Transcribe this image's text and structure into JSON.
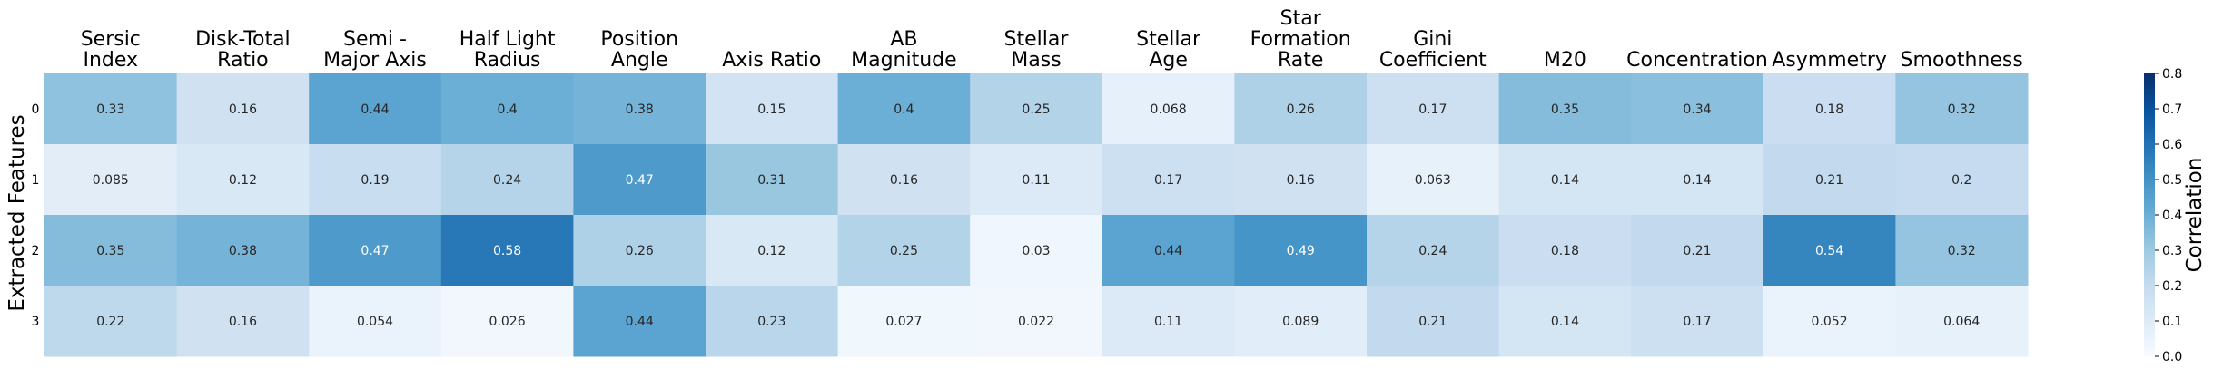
{
  "chart_data": {
    "type": "heatmap",
    "title": "",
    "xlabel": "",
    "ylabel": "Extracted Features",
    "colorbar_label": "Correlation",
    "colorbar_range": [
      0.0,
      0.8
    ],
    "colorbar_ticks": [
      "0.0",
      "0.1",
      "0.2",
      "0.3",
      "0.4",
      "0.5",
      "0.6",
      "0.7",
      "0.8"
    ],
    "columns": [
      [
        "Sersic",
        "Index"
      ],
      [
        "Disk-Total",
        "Ratio"
      ],
      [
        "Semi -",
        "Major Axis"
      ],
      [
        "Half Light",
        "Radius"
      ],
      [
        "Position",
        "Angle"
      ],
      [
        "Axis Ratio"
      ],
      [
        "AB",
        "Magnitude"
      ],
      [
        "Stellar",
        "Mass"
      ],
      [
        "Stellar",
        "Age"
      ],
      [
        "Star",
        "Formation",
        "Rate"
      ],
      [
        "Gini",
        "Coefficient"
      ],
      [
        "M20"
      ],
      [
        "Concentration"
      ],
      [
        "Asymmetry"
      ],
      [
        "Smoothness"
      ]
    ],
    "rows": [
      "0",
      "1",
      "2",
      "3"
    ],
    "values": [
      [
        0.33,
        0.16,
        0.44,
        0.4,
        0.38,
        0.15,
        0.4,
        0.25,
        0.068,
        0.26,
        0.17,
        0.35,
        0.34,
        0.18,
        0.32
      ],
      [
        0.085,
        0.12,
        0.19,
        0.24,
        0.47,
        0.31,
        0.16,
        0.11,
        0.17,
        0.16,
        0.063,
        0.14,
        0.14,
        0.21,
        0.2
      ],
      [
        0.35,
        0.38,
        0.47,
        0.58,
        0.26,
        0.12,
        0.25,
        0.03,
        0.44,
        0.49,
        0.24,
        0.18,
        0.21,
        0.54,
        0.32
      ],
      [
        0.22,
        0.16,
        0.054,
        0.026,
        0.44,
        0.23,
        0.027,
        0.022,
        0.11,
        0.089,
        0.21,
        0.14,
        0.17,
        0.052,
        0.064
      ]
    ],
    "colormap": [
      "#f7fbff",
      "#deebf7",
      "#c6dbef",
      "#9ecae1",
      "#6baed6",
      "#4292c6",
      "#2171b5",
      "#08519c",
      "#08306b"
    ]
  }
}
